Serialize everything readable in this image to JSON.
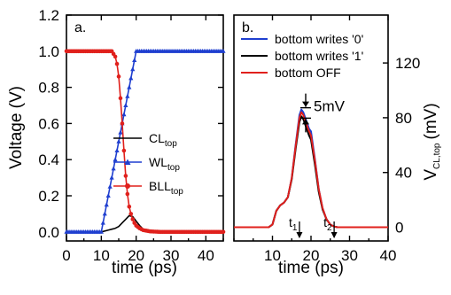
{
  "chart_data": [
    {
      "panel": "a.",
      "type": "line",
      "xlabel": "time (ps)",
      "ylabel": "Voltage (V)",
      "xlim": [
        0,
        45
      ],
      "ylim": [
        -0.05,
        1.2
      ],
      "xticks": [
        0,
        10,
        20,
        30,
        40
      ],
      "yticks": [
        0.0,
        0.2,
        0.4,
        0.6,
        0.8,
        1.0,
        1.2
      ],
      "yticklabels": [
        "0.0",
        "0.2",
        "0.4",
        "0.6",
        "0.8",
        "1.0",
        "1.2"
      ],
      "legend_position": "center-right",
      "series": [
        {
          "name": "CL",
          "sub": "top",
          "color": "#000000",
          "marker": "none",
          "x": [
            0,
            10,
            12,
            14,
            15,
            16,
            17,
            18,
            19,
            20,
            21,
            22,
            23,
            25,
            30,
            45
          ],
          "y": [
            0,
            0,
            0.01,
            0.02,
            0.03,
            0.05,
            0.07,
            0.09,
            0.085,
            0.06,
            0.035,
            0.015,
            0.005,
            0,
            0,
            0
          ]
        },
        {
          "name": "WL",
          "sub": "top",
          "color": "#1f3fd0",
          "marker": "triangle",
          "x": [
            0,
            10,
            20,
            45
          ],
          "y": [
            0,
            0,
            1.0,
            1.0
          ]
        },
        {
          "name": "BLL",
          "sub": "top",
          "color": "#e0201c",
          "marker": "dot",
          "x": [
            0,
            13,
            14,
            14.5,
            15,
            15.5,
            16,
            16.5,
            17,
            17.5,
            18,
            18.5,
            19,
            19.5,
            20,
            21,
            22,
            24,
            27,
            45
          ],
          "y": [
            1.0,
            1.0,
            0.97,
            0.93,
            0.86,
            0.74,
            0.6,
            0.45,
            0.31,
            0.21,
            0.14,
            0.1,
            0.07,
            0.05,
            0.035,
            0.02,
            0.01,
            0.003,
            0,
            0
          ]
        }
      ]
    },
    {
      "panel": "b.",
      "type": "line",
      "xlabel": "time (ps)",
      "ylabel": "V",
      "ylabel_sub": "CL,top",
      "ylabel_unit": "(mV)",
      "xlim": [
        0,
        40
      ],
      "ylim": [
        -10,
        155
      ],
      "xticks": [
        10,
        20,
        30,
        40
      ],
      "yticks": [
        0,
        40,
        80,
        120
      ],
      "legend_position": "top-right",
      "annotations": {
        "delta": "5mV",
        "t1": "t",
        "t1_sub": "1",
        "t2": "t",
        "t2_sub": "2",
        "t1_x": 17,
        "t2_x": 26
      },
      "series": [
        {
          "name": "bottom writes '0'",
          "color": "#1f3fd0",
          "x": [
            0,
            9,
            10,
            11,
            12,
            13,
            14,
            15,
            16,
            17,
            17.5,
            18,
            18.5,
            19,
            19.5,
            20,
            21,
            22,
            23,
            24,
            25,
            26,
            27,
            28,
            30,
            40
          ],
          "y": [
            0,
            0,
            2,
            12,
            16,
            18,
            22,
            36,
            60,
            82,
            86,
            84,
            80,
            76,
            72,
            70,
            50,
            28,
            14,
            6,
            2,
            0.5,
            0,
            0,
            0,
            0
          ]
        },
        {
          "name": "bottom writes '1'",
          "color": "#000000",
          "x": [
            0,
            9,
            10,
            11,
            12,
            13,
            14,
            15,
            16,
            17,
            17.5,
            18,
            18.5,
            19,
            19.5,
            20,
            21,
            22,
            23,
            24,
            25,
            26,
            27,
            28,
            30,
            40
          ],
          "y": [
            0,
            0,
            2,
            12,
            16,
            18,
            22,
            35,
            57,
            77,
            81,
            79,
            75,
            71,
            67,
            64,
            46,
            26,
            13,
            6,
            2,
            0.5,
            0,
            0,
            0,
            0
          ]
        },
        {
          "name": "bottom OFF",
          "color": "#e0201c",
          "x": [
            0,
            9,
            10,
            11,
            12,
            13,
            14,
            15,
            16,
            17,
            17.5,
            18,
            18.5,
            19,
            19.5,
            20,
            21,
            22,
            23,
            24,
            25,
            26,
            27,
            28,
            30,
            40
          ],
          "y": [
            0,
            0,
            2,
            12,
            16,
            18,
            22,
            36,
            59,
            80,
            84,
            82,
            78,
            74,
            70,
            67,
            49,
            28,
            14,
            6,
            2,
            0.5,
            0,
            0,
            0,
            0
          ]
        }
      ]
    }
  ]
}
